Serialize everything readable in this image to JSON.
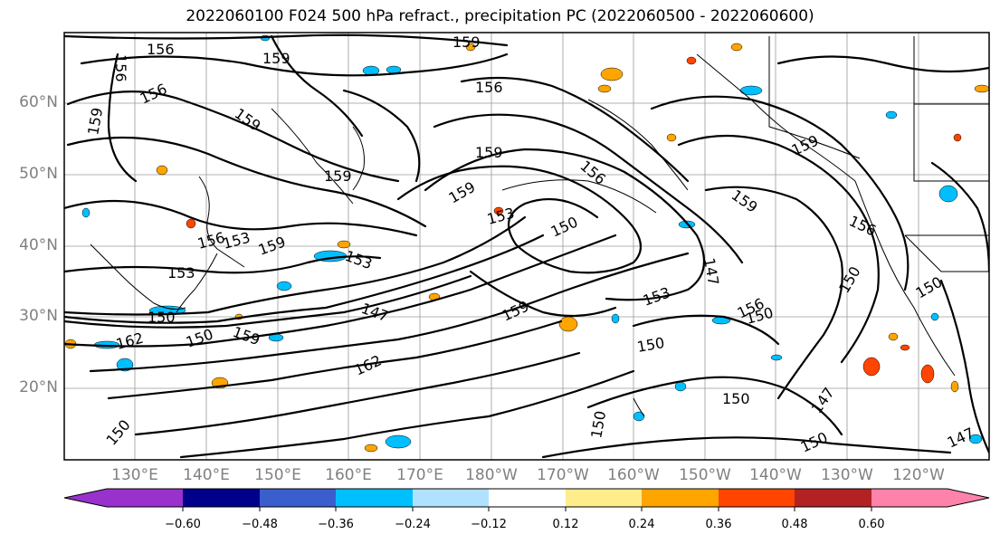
{
  "title": "2022060100 F024 500 hPa refract., precipitation PC (2022060500 - 2022060600)",
  "lat_labels": [
    "60°N",
    "50°N",
    "40°N",
    "30°N",
    "20°N"
  ],
  "lon_labels": [
    "130°E",
    "140°E",
    "150°E",
    "160°E",
    "170°E",
    "180°W",
    "170°W",
    "160°W",
    "150°W",
    "140°W",
    "130°W",
    "120°W"
  ],
  "contour_labels": [
    "156",
    "159",
    "159",
    "156",
    "156",
    "159",
    "159",
    "156",
    "159",
    "159",
    "153",
    "150",
    "159",
    "156",
    "159",
    "153",
    "156",
    "159",
    "153",
    "150",
    "147",
    "159",
    "153",
    "162",
    "147",
    "153",
    "150",
    "156",
    "150",
    "150",
    "150",
    "150",
    "147",
    "150",
    "150",
    "150",
    "159",
    "159",
    "156",
    "162",
    "150",
    "147"
  ],
  "colorbar": {
    "ticks": [
      "−0.60",
      "−0.48",
      "−0.36",
      "−0.24",
      "−0.12",
      "0.12",
      "0.24",
      "0.36",
      "0.48",
      "0.60"
    ],
    "colors": [
      "#9932cc",
      "#00008b",
      "#3a5fcd",
      "#00bfff",
      "#b0e2ff",
      "#ffffff",
      "#ffec8b",
      "#ffa500",
      "#ff4500",
      "#b22222",
      "#ff82ab"
    ]
  }
}
